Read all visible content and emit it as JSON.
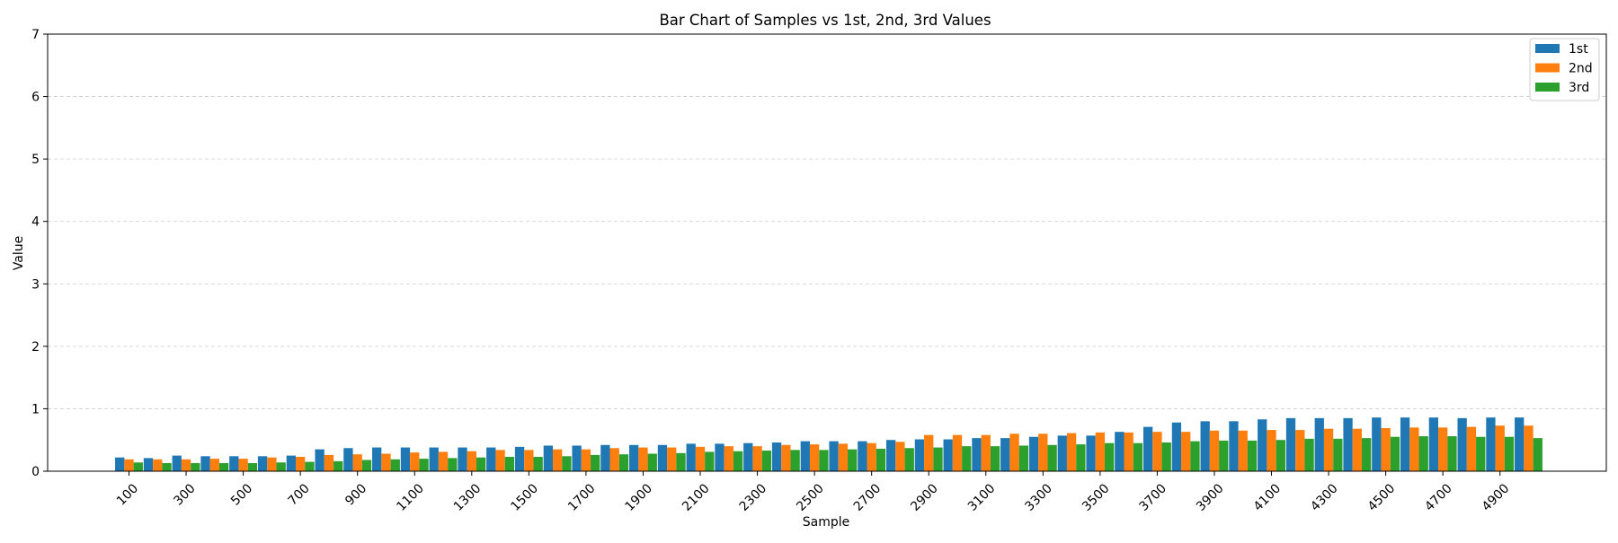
{
  "chart_data": {
    "type": "bar",
    "title": "Bar Chart of Samples vs 1st, 2nd, 3rd Values",
    "xlabel": "Sample",
    "ylabel": "Value",
    "ylim": [
      0,
      7
    ],
    "yticks": [
      0,
      1,
      2,
      3,
      4,
      5,
      6,
      7
    ],
    "grid": "y-dashed",
    "legend_position": "top-right",
    "categories": [
      100,
      200,
      300,
      400,
      500,
      600,
      700,
      800,
      900,
      1000,
      1100,
      1200,
      1300,
      1400,
      1500,
      1600,
      1700,
      1800,
      1900,
      2000,
      2100,
      2200,
      2300,
      2400,
      2500,
      2600,
      2700,
      2800,
      2900,
      3000,
      3100,
      3200,
      3300,
      3400,
      3500,
      3600,
      3700,
      3800,
      3900,
      4000,
      4100,
      4200,
      4300,
      4400,
      4500,
      4600,
      4700,
      4800,
      4900,
      5000
    ],
    "xtick_labels": [
      "100",
      "300",
      "500",
      "700",
      "900",
      "1100",
      "1300",
      "1500",
      "1700",
      "1900",
      "2100",
      "2300",
      "2500",
      "2700",
      "2900",
      "3100",
      "3300",
      "3500",
      "3700",
      "3900",
      "4100",
      "4300",
      "4500",
      "4700",
      "4900"
    ],
    "series": [
      {
        "name": "1st",
        "color": "#1f77b4",
        "values": [
          0.22,
          0.21,
          0.25,
          0.24,
          0.24,
          0.24,
          0.25,
          0.35,
          0.37,
          0.38,
          0.38,
          0.38,
          0.38,
          0.38,
          0.39,
          0.41,
          0.41,
          0.42,
          0.42,
          0.42,
          0.44,
          0.44,
          0.45,
          0.46,
          0.48,
          0.48,
          0.48,
          0.5,
          0.51,
          0.51,
          0.53,
          0.53,
          0.55,
          0.57,
          0.57,
          0.63,
          0.71,
          0.78,
          0.8,
          0.8,
          0.83,
          0.85,
          0.85,
          0.85,
          0.86,
          0.86,
          0.86,
          0.85,
          0.86,
          0.86
        ]
      },
      {
        "name": "2nd",
        "color": "#ff7f0e",
        "values": [
          0.19,
          0.19,
          0.19,
          0.2,
          0.2,
          0.22,
          0.23,
          0.26,
          0.27,
          0.28,
          0.3,
          0.31,
          0.32,
          0.34,
          0.34,
          0.35,
          0.35,
          0.37,
          0.38,
          0.38,
          0.39,
          0.4,
          0.4,
          0.42,
          0.43,
          0.44,
          0.45,
          0.47,
          0.58,
          0.58,
          0.58,
          0.6,
          0.6,
          0.61,
          0.62,
          0.62,
          0.63,
          0.63,
          0.65,
          0.65,
          0.66,
          0.66,
          0.68,
          0.68,
          0.69,
          0.7,
          0.7,
          0.71,
          0.73,
          0.73
        ]
      },
      {
        "name": "3rd",
        "color": "#2ca02c",
        "values": [
          0.14,
          0.13,
          0.13,
          0.13,
          0.13,
          0.14,
          0.15,
          0.16,
          0.18,
          0.19,
          0.2,
          0.21,
          0.22,
          0.23,
          0.23,
          0.24,
          0.26,
          0.27,
          0.28,
          0.29,
          0.31,
          0.32,
          0.33,
          0.34,
          0.34,
          0.35,
          0.36,
          0.37,
          0.38,
          0.4,
          0.4,
          0.41,
          0.42,
          0.43,
          0.45,
          0.45,
          0.46,
          0.48,
          0.49,
          0.49,
          0.5,
          0.52,
          0.52,
          0.53,
          0.55,
          0.56,
          0.56,
          0.55,
          0.55,
          0.53
        ]
      }
    ]
  }
}
